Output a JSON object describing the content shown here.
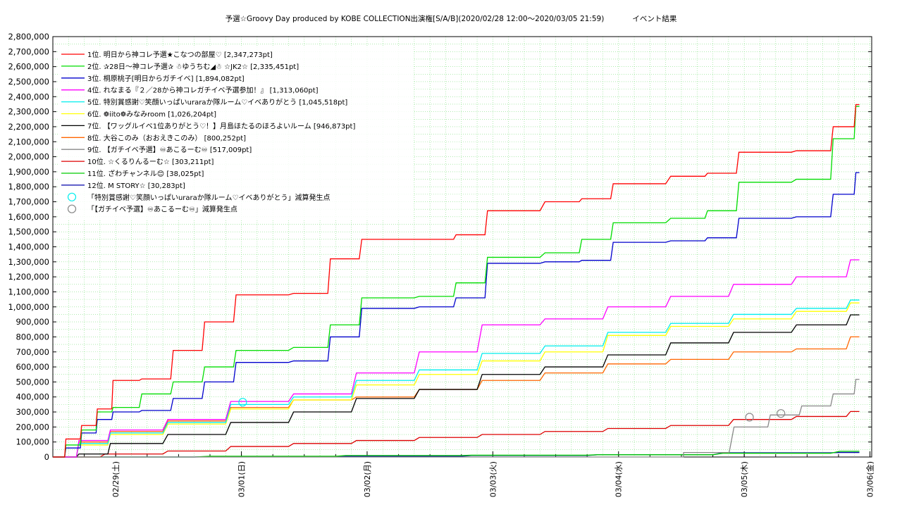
{
  "chart_data": {
    "type": "line",
    "title": "予選☆Groovy Day produced by KOBE COLLECTION出演権[S/A/B](2020/02/28 12:00〜2020/03/05 21:59)            イベント結果",
    "xlabel": "",
    "ylabel": "",
    "ylim": [
      0,
      2800000
    ],
    "xlim": [
      "2020-02-28 12:00",
      "2020-03-06 00:20"
    ],
    "grid": true,
    "legend_position": "top-left",
    "y_ticks": [
      "0",
      "100,000",
      "200,000",
      "300,000",
      "400,000",
      "500,000",
      "600,000",
      "700,000",
      "800,000",
      "900,000",
      "1,000,000",
      "1,100,000",
      "1,200,000",
      "1,300,000",
      "1,400,000",
      "1,500,000",
      "1,600,000",
      "1,700,000",
      "1,800,000",
      "1,900,000",
      "2,000,000",
      "2,100,000",
      "2,200,000",
      "2,300,000",
      "2,400,000",
      "2,500,000",
      "2,600,000",
      "2,700,000",
      "2,800,000"
    ],
    "x_ticks": [
      {
        "label": "02/29(土)",
        "time": "2020-02-29 00:00"
      },
      {
        "label": "03/01(日)",
        "time": "2020-03-01 00:00"
      },
      {
        "label": "03/02(月)",
        "time": "2020-03-02 00:00"
      },
      {
        "label": "03/03(火)",
        "time": "2020-03-03 00:00"
      },
      {
        "label": "03/04(水)",
        "time": "2020-03-04 00:00"
      },
      {
        "label": "03/05(木)",
        "time": "2020-03-05 00:00"
      },
      {
        "label": "03/06(金)",
        "time": "2020-03-06 00:00"
      }
    ],
    "series": [
      {
        "name": "1位. 明日から神コレ予選★こなつの部屋♡ [2,347,273pt]",
        "color": "#ff0000",
        "x": [
          "2020-02-28 12:00",
          "2020-02-28 15:00",
          "2020-02-28 18:00",
          "2020-02-28 21:00",
          "2020-02-29 00:00",
          "2020-02-29 06:00",
          "2020-02-29 12:00",
          "2020-02-29 18:00",
          "2020-03-01 00:00",
          "2020-03-01 12:00",
          "2020-03-01 18:00",
          "2020-03-02 00:00",
          "2020-03-02 12:00",
          "2020-03-02 18:00",
          "2020-03-03 00:00",
          "2020-03-03 12:00",
          "2020-03-03 18:00",
          "2020-03-04 00:00",
          "2020-03-04 12:00",
          "2020-03-04 18:00",
          "2020-03-05 00:00",
          "2020-03-05 12:00",
          "2020-03-05 18:00",
          "2020-03-05 21:59"
        ],
        "y": [
          0,
          120000,
          210000,
          320000,
          510000,
          520000,
          710000,
          900000,
          1080000,
          1090000,
          1320000,
          1450000,
          1450000,
          1480000,
          1640000,
          1700000,
          1720000,
          1820000,
          1870000,
          1890000,
          2030000,
          2040000,
          2200000,
          2347273
        ]
      },
      {
        "name": "2位. ✰28日〜神コレ予選✰ ☃ゆうちむ◢☃ ☆JK2☆ [2,335,451pt]",
        "color": "#00dd00",
        "x": [
          "2020-02-28 12:00",
          "2020-02-28 15:00",
          "2020-02-28 18:00",
          "2020-02-28 21:00",
          "2020-02-29 00:00",
          "2020-02-29 06:00",
          "2020-02-29 12:00",
          "2020-02-29 18:00",
          "2020-03-01 00:00",
          "2020-03-01 12:00",
          "2020-03-01 18:00",
          "2020-03-02 00:00",
          "2020-03-02 12:00",
          "2020-03-02 18:00",
          "2020-03-03 00:00",
          "2020-03-03 12:00",
          "2020-03-03 18:00",
          "2020-03-04 00:00",
          "2020-03-04 12:00",
          "2020-03-04 18:00",
          "2020-03-05 00:00",
          "2020-03-05 12:00",
          "2020-03-05 18:00",
          "2020-03-05 21:59"
        ],
        "y": [
          0,
          80000,
          180000,
          300000,
          330000,
          420000,
          500000,
          600000,
          710000,
          730000,
          880000,
          1060000,
          1070000,
          1160000,
          1330000,
          1360000,
          1450000,
          1560000,
          1590000,
          1640000,
          1830000,
          1850000,
          2120000,
          2335451
        ]
      },
      {
        "name": "3位. 桐原桃子[明日からガチイベ] [1,894,082pt]",
        "color": "#0000cc",
        "x": [
          "2020-02-28 12:00",
          "2020-02-28 15:00",
          "2020-02-28 18:00",
          "2020-02-28 21:00",
          "2020-02-29 00:00",
          "2020-02-29 06:00",
          "2020-02-29 12:00",
          "2020-02-29 18:00",
          "2020-03-01 00:00",
          "2020-03-01 12:00",
          "2020-03-01 18:00",
          "2020-03-02 00:00",
          "2020-03-02 12:00",
          "2020-03-02 18:00",
          "2020-03-03 00:00",
          "2020-03-03 12:00",
          "2020-03-03 18:00",
          "2020-03-04 00:00",
          "2020-03-04 12:00",
          "2020-03-04 18:00",
          "2020-03-05 00:00",
          "2020-03-05 12:00",
          "2020-03-05 18:00",
          "2020-03-05 21:59"
        ],
        "y": [
          0,
          60000,
          160000,
          250000,
          300000,
          310000,
          390000,
          500000,
          630000,
          640000,
          800000,
          990000,
          1000000,
          1060000,
          1290000,
          1300000,
          1310000,
          1430000,
          1440000,
          1460000,
          1590000,
          1600000,
          1750000,
          1894082
        ]
      },
      {
        "name": "4位. れなまる『２／28から神コレガチイベ予選参加！』 [1,313,060pt]",
        "color": "#ff00ff",
        "x": [
          "2020-02-28 12:00",
          "2020-02-28 18:00",
          "2020-02-29 00:00",
          "2020-02-29 12:00",
          "2020-03-01 00:00",
          "2020-03-01 12:00",
          "2020-03-02 00:00",
          "2020-03-02 12:00",
          "2020-03-03 00:00",
          "2020-03-03 12:00",
          "2020-03-04 00:00",
          "2020-03-04 12:00",
          "2020-03-05 00:00",
          "2020-03-05 12:00",
          "2020-03-05 21:59"
        ],
        "y": [
          0,
          110000,
          180000,
          250000,
          370000,
          420000,
          560000,
          700000,
          880000,
          920000,
          1000000,
          1070000,
          1150000,
          1200000,
          1313060
        ]
      },
      {
        "name": "5位. 特別賞感謝♡笑顔いっぱいuraraか隊ルーム♡イベありがとう [1,045,518pt]",
        "color": "#00eeee",
        "x": [
          "2020-02-28 12:00",
          "2020-02-28 18:00",
          "2020-02-29 00:00",
          "2020-02-29 12:00",
          "2020-03-01 00:00",
          "2020-03-01 12:00",
          "2020-03-02 00:00",
          "2020-03-02 12:00",
          "2020-03-03 00:00",
          "2020-03-03 12:00",
          "2020-03-04 00:00",
          "2020-03-04 12:00",
          "2020-03-05 00:00",
          "2020-03-05 12:00",
          "2020-03-05 21:59"
        ],
        "y": [
          0,
          90000,
          160000,
          230000,
          350000,
          400000,
          510000,
          580000,
          690000,
          740000,
          830000,
          890000,
          950000,
          990000,
          1045518
        ]
      },
      {
        "name": "6位. ❁iito❁みなみroom [1,026,204pt]",
        "color": "#ffff00",
        "x": [
          "2020-02-28 12:00",
          "2020-02-28 18:00",
          "2020-02-29 00:00",
          "2020-02-29 12:00",
          "2020-03-01 00:00",
          "2020-03-01 12:00",
          "2020-03-02 00:00",
          "2020-03-02 12:00",
          "2020-03-03 00:00",
          "2020-03-03 12:00",
          "2020-03-04 00:00",
          "2020-03-04 12:00",
          "2020-03-05 00:00",
          "2020-03-05 12:00",
          "2020-03-05 21:59"
        ],
        "y": [
          0,
          80000,
          150000,
          220000,
          320000,
          380000,
          480000,
          550000,
          640000,
          700000,
          810000,
          870000,
          920000,
          970000,
          1026204
        ]
      },
      {
        "name": "7位. 【ワッグルイベ1位ありがとう♡！】月島ほたるのほろよいルーム [946,873pt]",
        "color": "#000000",
        "x": [
          "2020-02-28 12:00",
          "2020-02-28 18:00",
          "2020-02-29 00:00",
          "2020-02-29 12:00",
          "2020-03-01 00:00",
          "2020-03-01 12:00",
          "2020-03-02 00:00",
          "2020-03-02 12:00",
          "2020-03-03 00:00",
          "2020-03-03 12:00",
          "2020-03-04 00:00",
          "2020-03-04 12:00",
          "2020-03-05 00:00",
          "2020-03-05 12:00",
          "2020-03-05 21:59"
        ],
        "y": [
          0,
          20000,
          90000,
          150000,
          230000,
          300000,
          390000,
          450000,
          550000,
          600000,
          680000,
          760000,
          830000,
          880000,
          946873
        ]
      },
      {
        "name": "8位. 大谷このみ（おおえきこのみ） [800,252pt]",
        "color": "#ff6600",
        "x": [
          "2020-02-28 12:00",
          "2020-02-28 18:00",
          "2020-02-29 00:00",
          "2020-02-29 12:00",
          "2020-03-01 00:00",
          "2020-03-01 12:00",
          "2020-03-02 00:00",
          "2020-03-02 12:00",
          "2020-03-03 00:00",
          "2020-03-03 12:00",
          "2020-03-04 00:00",
          "2020-03-04 12:00",
          "2020-03-05 00:00",
          "2020-03-05 12:00",
          "2020-03-05 21:59"
        ],
        "y": [
          0,
          100000,
          170000,
          240000,
          330000,
          380000,
          400000,
          450000,
          510000,
          560000,
          620000,
          650000,
          700000,
          720000,
          800252
        ]
      },
      {
        "name": "9位. 【ガチイベ予選】♾あこるーむ♾ [517,009pt]",
        "color": "#888888",
        "x": [
          "2020-02-28 12:00",
          "2020-03-04 12:00",
          "2020-03-04 12:30",
          "2020-03-05 00:00",
          "2020-03-05 06:00",
          "2020-03-05 12:00",
          "2020-03-05 18:00",
          "2020-03-05 21:59"
        ],
        "y": [
          0,
          0,
          30000,
          200000,
          280000,
          340000,
          420000,
          517009
        ]
      },
      {
        "name": "10位. ☆くるりんるーむ☆ [303,211pt]",
        "color": "#dd0000",
        "x": [
          "2020-02-28 12:00",
          "2020-02-29 00:00",
          "2020-02-29 12:00",
          "2020-03-01 00:00",
          "2020-03-01 12:00",
          "2020-03-02 00:00",
          "2020-03-02 12:00",
          "2020-03-03 00:00",
          "2020-03-03 12:00",
          "2020-03-04 00:00",
          "2020-03-04 12:00",
          "2020-03-05 00:00",
          "2020-03-05 12:00",
          "2020-03-05 21:59"
        ],
        "y": [
          0,
          20000,
          40000,
          70000,
          90000,
          110000,
          130000,
          150000,
          170000,
          190000,
          210000,
          250000,
          270000,
          303211
        ]
      },
      {
        "name": "11位. ざわチャンネル😊 [38,025pt]",
        "color": "#00cc00",
        "x": [
          "2020-02-28 12:00",
          "2020-03-01 00:00",
          "2020-03-02 00:00",
          "2020-03-03 00:00",
          "2020-03-04 00:00",
          "2020-03-05 00:00",
          "2020-03-05 21:59"
        ],
        "y": [
          0,
          5000,
          10000,
          12000,
          15000,
          25000,
          38025
        ]
      },
      {
        "name": "12位. M STORY☆ [30,283pt]",
        "color": "#0000aa",
        "x": [
          "2020-02-28 12:00",
          "2020-03-01 00:00",
          "2020-03-02 00:00",
          "2020-03-03 00:00",
          "2020-03-04 00:00",
          "2020-03-05 00:00",
          "2020-03-05 21:59"
        ],
        "y": [
          0,
          2000,
          5000,
          10000,
          15000,
          28000,
          30283
        ]
      }
    ],
    "markers": [
      {
        "name": "「特別賞感謝♡笑顔いっぱいuraraか隊ルーム♡イベありがとう」減算発生点",
        "color": "#00eeee",
        "points": [
          {
            "time": "2020-03-01 00:15",
            "value": 365000
          }
        ]
      },
      {
        "name": "「【ガチイベ予選】♾あこるーむ♾」減算発生点",
        "color": "#888888",
        "points": [
          {
            "time": "2020-03-05 01:00",
            "value": 265000
          },
          {
            "time": "2020-03-05 07:00",
            "value": 290000
          }
        ]
      }
    ]
  }
}
